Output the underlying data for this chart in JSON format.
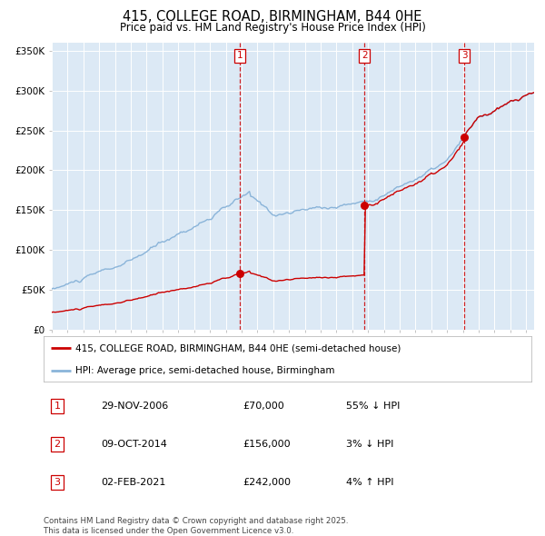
{
  "title": "415, COLLEGE ROAD, BIRMINGHAM, B44 0HE",
  "subtitle": "Price paid vs. HM Land Registry's House Price Index (HPI)",
  "bg_color": "#dce9f5",
  "red_line_color": "#cc0000",
  "blue_line_color": "#8ab4d9",
  "red_dot_color": "#cc0000",
  "dashed_line_color": "#cc0000",
  "sale1_date_x": 2006.91,
  "sale1_price": 70000,
  "sale2_date_x": 2014.77,
  "sale2_price": 156000,
  "sale3_date_x": 2021.09,
  "sale3_price": 242000,
  "yticks": [
    0,
    50000,
    100000,
    150000,
    200000,
    250000,
    300000,
    350000
  ],
  "ytick_labels": [
    "£0",
    "£50K",
    "£100K",
    "£150K",
    "£200K",
    "£250K",
    "£300K",
    "£350K"
  ],
  "xmin": 1995,
  "xmax": 2025.5,
  "ymin": 0,
  "ymax": 360000,
  "legend_red": "415, COLLEGE ROAD, BIRMINGHAM, B44 0HE (semi-detached house)",
  "legend_blue": "HPI: Average price, semi-detached house, Birmingham",
  "table_rows": [
    {
      "num": "1",
      "date": "29-NOV-2006",
      "price": "£70,000",
      "hpi": "55% ↓ HPI"
    },
    {
      "num": "2",
      "date": "09-OCT-2014",
      "price": "£156,000",
      "hpi": "3% ↓ HPI"
    },
    {
      "num": "3",
      "date": "02-FEB-2021",
      "price": "£242,000",
      "hpi": "4% ↑ HPI"
    }
  ],
  "footer": "Contains HM Land Registry data © Crown copyright and database right 2025.\nThis data is licensed under the Open Government Licence v3.0."
}
